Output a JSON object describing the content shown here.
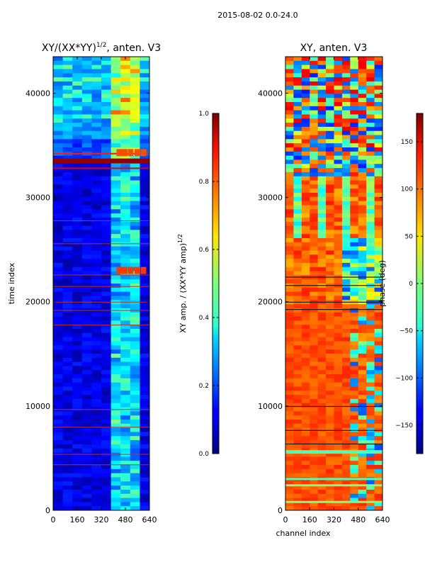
{
  "figure": {
    "suptitle": "2015-08-02 0.0-24.0"
  },
  "chart_data": [
    {
      "type": "heatmap",
      "title_main": "XY/(XX*YY)",
      "title_exp": "1/2",
      "title_rest": ", anten. V3",
      "ylabel": "time index",
      "xlabel": "",
      "x_ticks": [
        0,
        160,
        320,
        480,
        640
      ],
      "y_ticks": [
        0,
        10000,
        20000,
        30000,
        40000
      ],
      "xlim": [
        0,
        640
      ],
      "ylim": [
        0,
        43500
      ],
      "colorbar": {
        "label_main": "XY amp. / (XX*YY amp)",
        "label_exp": "1/2",
        "ticks": [
          "0.0",
          "0.2",
          "0.4",
          "0.6",
          "0.8",
          "1.0"
        ],
        "range": [
          0.0,
          1.0
        ],
        "colormap": "jet"
      }
    },
    {
      "type": "heatmap",
      "title_main": "XY, anten. V3",
      "ylabel": "",
      "xlabel": "channel index",
      "x_ticks": [
        0,
        160,
        320,
        480,
        640
      ],
      "y_ticks": [
        0,
        10000,
        20000,
        30000,
        40000
      ],
      "xlim": [
        0,
        640
      ],
      "ylim": [
        0,
        43500
      ],
      "colorbar": {
        "label_main": "phase (deg)",
        "ticks": [
          "−150",
          "−100",
          "−50",
          "0",
          "50",
          "100",
          "150"
        ],
        "range": [
          -180,
          180
        ],
        "colormap": "jet"
      }
    }
  ]
}
